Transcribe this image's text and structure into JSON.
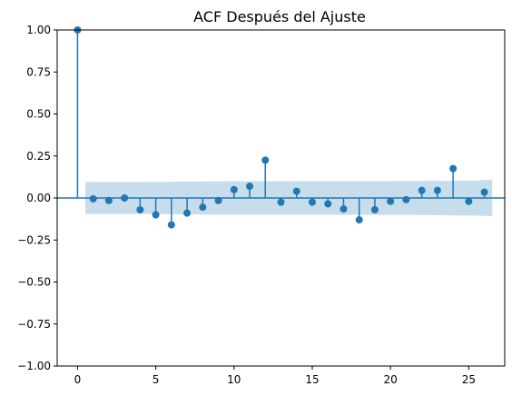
{
  "chart_data": {
    "type": "stem",
    "title": "ACF Después del Ajuste",
    "xlabel": "",
    "ylabel": "",
    "xlim": [
      -1.3,
      27.3
    ],
    "ylim": [
      -1.0,
      1.0
    ],
    "xticks": [
      0,
      5,
      10,
      15,
      20,
      25
    ],
    "yticks": [
      -1.0,
      -0.75,
      -0.5,
      -0.25,
      0.0,
      0.25,
      0.5,
      0.75,
      1.0
    ],
    "ytick_labels": [
      "−1.00",
      "−0.75",
      "−0.50",
      "−0.25",
      "0.00",
      "0.25",
      "0.50",
      "0.75",
      "1.00"
    ],
    "xtick_labels": [
      "0",
      "5",
      "10",
      "15",
      "20",
      "25"
    ],
    "grid": false,
    "legend": "none",
    "lags": [
      0,
      1,
      2,
      3,
      4,
      5,
      6,
      7,
      8,
      9,
      10,
      11,
      12,
      13,
      14,
      15,
      16,
      17,
      18,
      19,
      20,
      21,
      22,
      23,
      24,
      25,
      26
    ],
    "acf": [
      1.0,
      -0.005,
      -0.015,
      0.0,
      -0.07,
      -0.1,
      -0.16,
      -0.09,
      -0.055,
      -0.015,
      0.05,
      0.07,
      0.225,
      -0.025,
      0.04,
      -0.025,
      -0.035,
      -0.065,
      -0.13,
      -0.07,
      -0.02,
      -0.01,
      0.045,
      0.045,
      0.175,
      -0.02,
      0.035
    ],
    "confidence_band": {
      "x": [
        0.5,
        1.5,
        2.5,
        3.5,
        4.5,
        5.5,
        6.5,
        7.5,
        8.5,
        9.5,
        10.5,
        11.5,
        12.5,
        13.5,
        14.5,
        15.5,
        16.5,
        17.5,
        18.5,
        19.5,
        20.5,
        21.5,
        22.5,
        23.5,
        24.5,
        25.5,
        26.5
      ],
      "upper": [
        0.095,
        0.095,
        0.095,
        0.095,
        0.095,
        0.096,
        0.097,
        0.098,
        0.099,
        0.1,
        0.1,
        0.1,
        0.1,
        0.1,
        0.1,
        0.1,
        0.1,
        0.1,
        0.1,
        0.1,
        0.101,
        0.101,
        0.102,
        0.103,
        0.104,
        0.105,
        0.108
      ],
      "lower": [
        -0.095,
        -0.095,
        -0.095,
        -0.095,
        -0.095,
        -0.096,
        -0.097,
        -0.098,
        -0.099,
        -0.1,
        -0.1,
        -0.1,
        -0.1,
        -0.1,
        -0.1,
        -0.1,
        -0.1,
        -0.1,
        -0.1,
        -0.1,
        -0.101,
        -0.101,
        -0.102,
        -0.103,
        -0.104,
        -0.105,
        -0.108
      ]
    },
    "colors": {
      "marker": "#1f77b4",
      "band": "#1f77b4",
      "axis": "#000000",
      "zero_line": "#1f77b4"
    }
  }
}
